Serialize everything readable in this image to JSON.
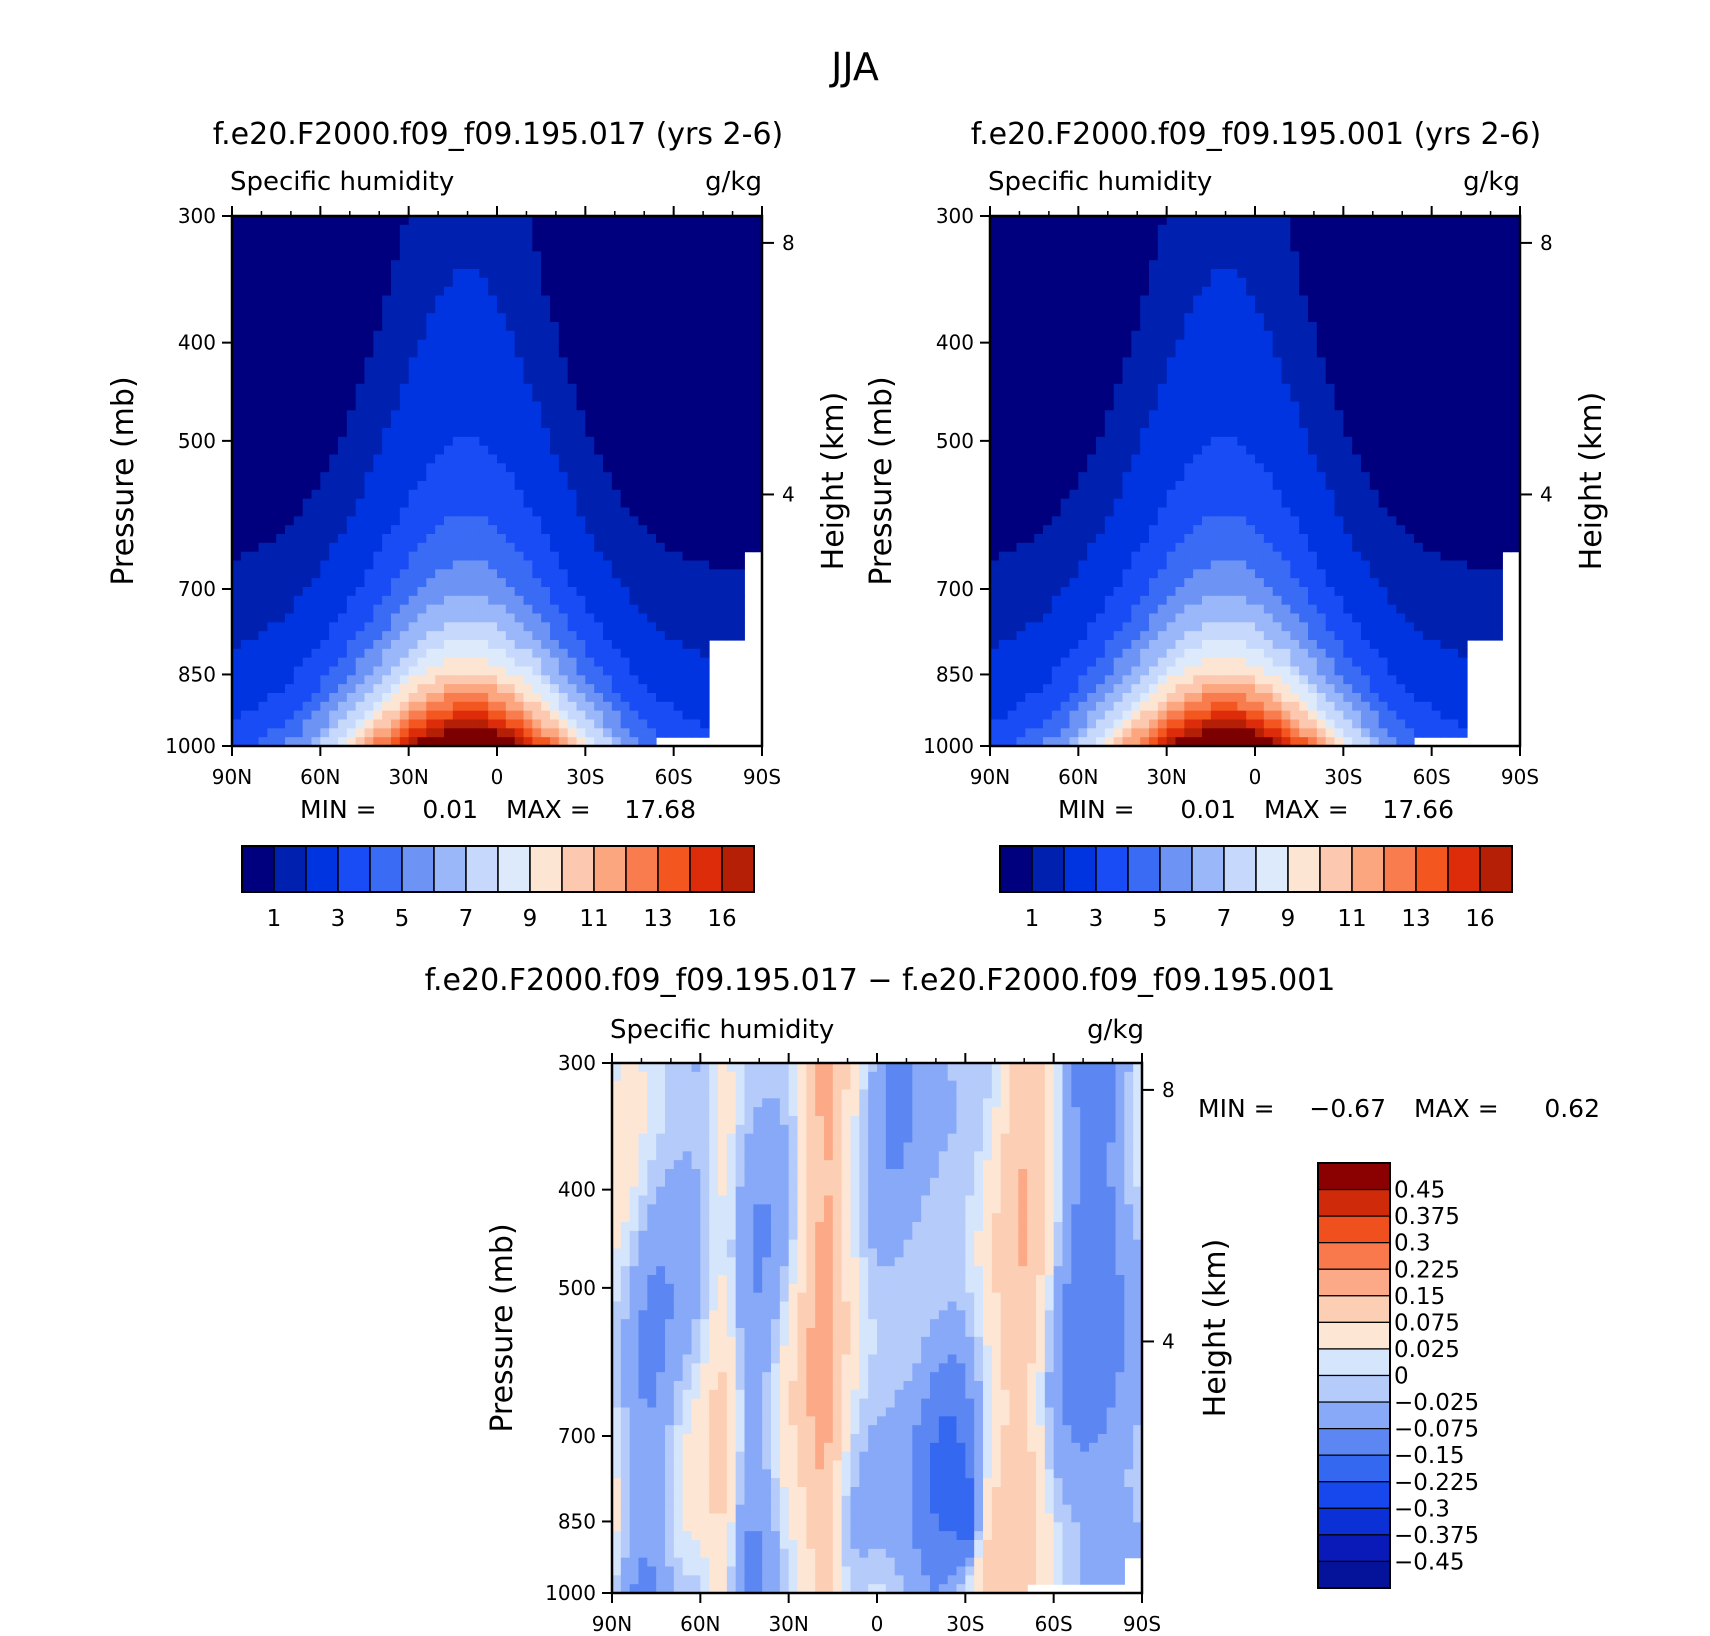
{
  "figure": {
    "title": "JJA"
  },
  "colors": {
    "absolute_scale": [
      "#00007f",
      "#0020b0",
      "#0034e0",
      "#1a4cf5",
      "#3a6bf5",
      "#6d94f5",
      "#9ab7fa",
      "#c6d8fb",
      "#ddeafc",
      "#fde5d3",
      "#fcc9b0",
      "#fba67f",
      "#f97c4f",
      "#f4561f",
      "#dd2c0a",
      "#b41f06",
      "#7d0000"
    ],
    "diff_scale": [
      "#05129a",
      "#0a1ab8",
      "#0a30d6",
      "#1748ee",
      "#3568f0",
      "#5c87f3",
      "#88a9f7",
      "#b5cbfa",
      "#d4e5fc",
      "#fde6d4",
      "#fccfb5",
      "#fba987",
      "#f9794d",
      "#f0501e",
      "#cf2a0a",
      "#8b0000"
    ]
  },
  "chart_data": [
    {
      "type": "heatmap",
      "title": "f.e20.F2000.f09_f09.195.017 (yrs 2-6)",
      "variable": "Specific humidity",
      "units": "g/kg",
      "ylabel": "Pressure (mb)",
      "ylabel_right": "Height (km)",
      "x_ticks": [
        "90N",
        "60N",
        "30N",
        "0",
        "30S",
        "60S",
        "90S"
      ],
      "y_ticks": [
        "300",
        "400",
        "500",
        "700",
        "850",
        "1000"
      ],
      "right_ticks": [
        "8",
        "4"
      ],
      "min_label": "MIN =",
      "min_value": "0.01",
      "max_label": "MAX =",
      "max_value": "17.68",
      "colorbar_labels": [
        "1",
        "3",
        "5",
        "7",
        "9",
        "11",
        "13",
        "16"
      ],
      "levels": [
        0.5,
        1,
        2,
        3,
        4,
        5,
        6,
        7,
        8,
        9,
        10,
        11,
        12,
        13,
        14,
        15,
        16
      ],
      "max_numeric": 17.68,
      "peak_lat": 10,
      "peak_p": 1000
    },
    {
      "type": "heatmap",
      "title": "f.e20.F2000.f09_f09.195.001 (yrs 2-6)",
      "variable": "Specific humidity",
      "units": "g/kg",
      "ylabel": "Pressure (mb)",
      "ylabel_right": "Height (km)",
      "x_ticks": [
        "90N",
        "60N",
        "30N",
        "0",
        "30S",
        "60S",
        "90S"
      ],
      "y_ticks": [
        "300",
        "400",
        "500",
        "700",
        "850",
        "1000"
      ],
      "right_ticks": [
        "8",
        "4"
      ],
      "min_label": "MIN =",
      "min_value": "0.01",
      "max_label": "MAX =",
      "max_value": "17.66",
      "colorbar_labels": [
        "1",
        "3",
        "5",
        "7",
        "9",
        "11",
        "13",
        "16"
      ],
      "levels": [
        0.5,
        1,
        2,
        3,
        4,
        5,
        6,
        7,
        8,
        9,
        10,
        11,
        12,
        13,
        14,
        15,
        16
      ],
      "max_numeric": 17.66,
      "peak_lat": 10,
      "peak_p": 1000
    },
    {
      "type": "heatmap",
      "title": "f.e20.F2000.f09_f09.195.017 − f.e20.F2000.f09_f09.195.001",
      "variable": "Specific humidity",
      "units": "g/kg",
      "ylabel": "Pressure (mb)",
      "ylabel_right": "Height (km)",
      "x_ticks": [
        "90N",
        "60N",
        "30N",
        "0",
        "30S",
        "60S",
        "90S"
      ],
      "y_ticks": [
        "300",
        "400",
        "500",
        "700",
        "850",
        "1000"
      ],
      "right_ticks": [
        "8",
        "4"
      ],
      "min_label": "MIN =",
      "min_value": "−0.67",
      "max_label": "MAX =",
      "max_value": "0.62",
      "colorbar_labels": [
        "0.45",
        "0.375",
        "0.3",
        "0.225",
        "0.15",
        "0.075",
        "0.025",
        "0",
        "−0.025",
        "−0.075",
        "−0.15",
        "−0.225",
        "−0.3",
        "−0.375",
        "−0.45"
      ],
      "levels": [
        -0.45,
        -0.375,
        -0.3,
        -0.225,
        -0.15,
        -0.075,
        -0.025,
        0,
        0.025,
        0.075,
        0.15,
        0.225,
        0.3,
        0.375,
        0.45
      ]
    }
  ]
}
